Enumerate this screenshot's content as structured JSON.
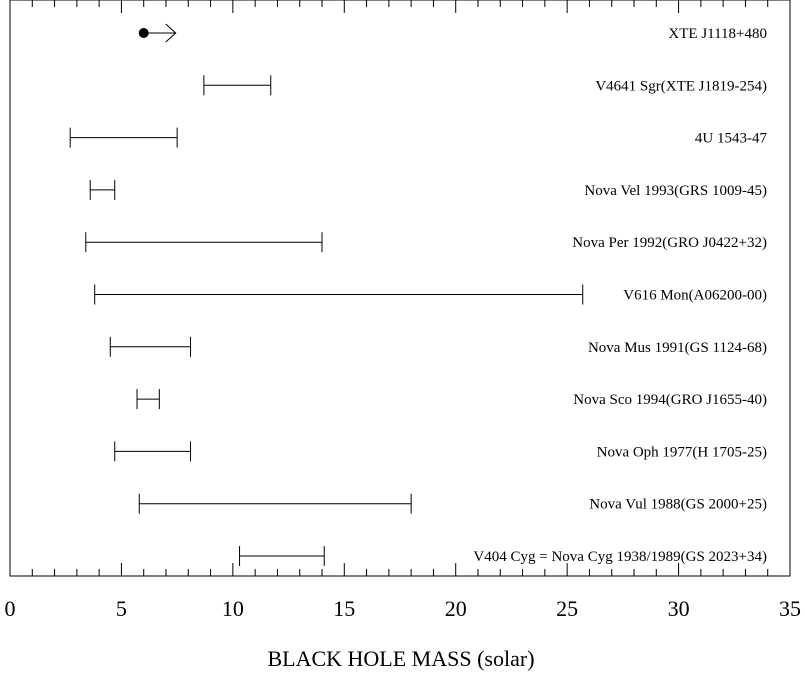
{
  "chart_data": {
    "type": "range",
    "xlabel": "BLACK HOLE MASS (solar)",
    "xlim": [
      0,
      35
    ],
    "xticks_major": [
      0,
      5,
      10,
      15,
      20,
      25,
      30,
      35
    ],
    "xticks_minor_step": 1,
    "grid": false,
    "sources": [
      {
        "name": "XTE J1118+480",
        "lower_limit": 6.0
      },
      {
        "name": "V4641 Sgr(XTE J1819-254)",
        "min": 8.7,
        "max": 11.7
      },
      {
        "name": "4U 1543-47",
        "min": 2.7,
        "max": 7.5
      },
      {
        "name": "Nova Vel 1993(GRS 1009-45)",
        "min": 3.6,
        "max": 4.7
      },
      {
        "name": "Nova Per 1992(GRO J0422+32)",
        "min": 3.4,
        "max": 14.0
      },
      {
        "name": "V616 Mon(A06200-00)",
        "min": 3.8,
        "max": 25.7
      },
      {
        "name": "Nova Mus 1991(GS 1124-68)",
        "min": 4.5,
        "max": 8.1
      },
      {
        "name": "Nova Sco 1994(GRO J1655-40)",
        "min": 5.7,
        "max": 6.7
      },
      {
        "name": "Nova Oph 1977(H 1705-25)",
        "min": 4.7,
        "max": 8.1
      },
      {
        "name": "Nova Vul 1988(GS 2000+25)",
        "min": 5.8,
        "max": 18.0
      },
      {
        "name": "V404 Cyg = Nova Cyg 1938/1989(GS 2023+34)",
        "min": 10.3,
        "max": 14.1
      }
    ]
  }
}
